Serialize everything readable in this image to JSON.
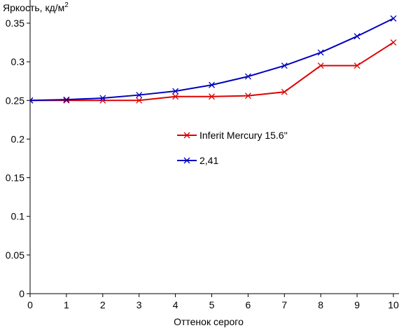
{
  "chart_data": {
    "type": "line",
    "title": "",
    "ylabel_main": "Яркость, кд/м",
    "ylabel_sup": "2",
    "xlabel": "Оттенок серого",
    "xlim": [
      0,
      10
    ],
    "ylim": [
      0,
      0.35
    ],
    "x_ticks": [
      "0",
      "1",
      "2",
      "3",
      "4",
      "5",
      "6",
      "7",
      "8",
      "9",
      "10"
    ],
    "y_ticks": [
      {
        "value": 0,
        "label": "0"
      },
      {
        "value": 0.05,
        "label": "0.05"
      },
      {
        "value": 0.1,
        "label": "0.1"
      },
      {
        "value": 0.15,
        "label": "0.15"
      },
      {
        "value": 0.2,
        "label": "0.2"
      },
      {
        "value": 0.25,
        "label": "0.25"
      },
      {
        "value": 0.3,
        "label": "0.3"
      },
      {
        "value": 0.35,
        "label": "0.35"
      }
    ],
    "grid": false,
    "legend_position": "center",
    "series": [
      {
        "name": "Inferit Mercury 15.6''",
        "color": "#e00000",
        "marker": "x",
        "x": [
          0,
          1,
          2,
          3,
          4,
          5,
          6,
          7,
          8,
          9,
          10
        ],
        "y": [
          0.25,
          0.25,
          0.25,
          0.25,
          0.255,
          0.255,
          0.256,
          0.261,
          0.295,
          0.295,
          0.325
        ]
      },
      {
        "name": "2,41",
        "color": "#0000c0",
        "marker": "x",
        "x": [
          0,
          1,
          2,
          3,
          4,
          5,
          6,
          7,
          8,
          9,
          10
        ],
        "y": [
          0.25,
          0.251,
          0.253,
          0.257,
          0.262,
          0.27,
          0.281,
          0.295,
          0.312,
          0.333,
          0.356
        ]
      }
    ]
  }
}
